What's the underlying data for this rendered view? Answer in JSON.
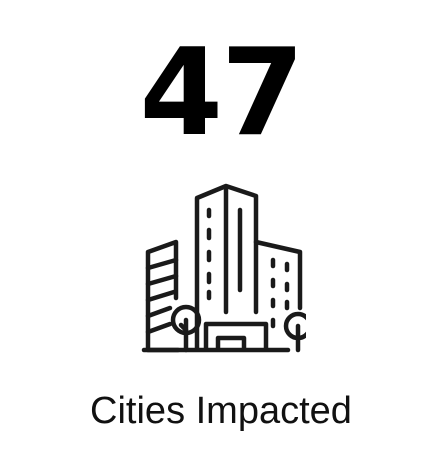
{
  "stat": {
    "value": "47",
    "label": "Cities Impacted",
    "icon": "city-buildings-icon"
  },
  "colors": {
    "background": "#ffffff",
    "text": "#000000",
    "icon_stroke": "#1a1a1a"
  }
}
